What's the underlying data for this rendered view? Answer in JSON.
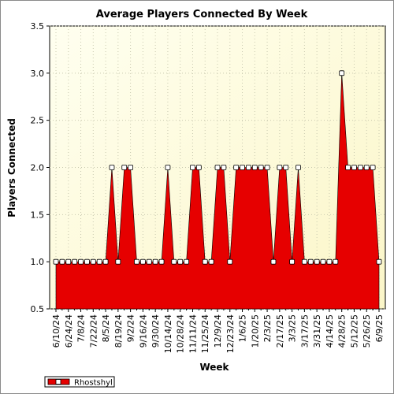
{
  "chart_data": {
    "type": "area",
    "title": "Average Players Connected By Week",
    "xlabel": "Week",
    "ylabel": "Players Connected",
    "ylim": [
      0.5,
      3.5
    ],
    "yticks": [
      "0.5",
      "1.0",
      "1.5",
      "2.0",
      "2.5",
      "3.0",
      "3.5"
    ],
    "grid": true,
    "legend_position": "bottom-left",
    "x_tick_labels": [
      "6/10/24",
      "6/24/24",
      "7/8/24",
      "7/22/24",
      "8/5/24",
      "8/19/24",
      "9/2/24",
      "9/16/24",
      "9/30/24",
      "10/14/24",
      "10/28/24",
      "11/11/24",
      "11/25/24",
      "12/9/24",
      "12/23/24",
      "1/6/25",
      "1/20/25",
      "2/3/25",
      "2/17/25",
      "3/3/25",
      "3/17/25",
      "3/31/25",
      "4/14/25",
      "4/28/25",
      "5/12/25",
      "5/26/25",
      "6/9/25"
    ],
    "x": [
      "6/10/24",
      "6/17/24",
      "6/24/24",
      "7/1/24",
      "7/8/24",
      "7/15/24",
      "7/22/24",
      "7/29/24",
      "8/5/24",
      "8/12/24",
      "8/19/24",
      "8/26/24",
      "9/2/24",
      "9/9/24",
      "9/16/24",
      "9/23/24",
      "9/30/24",
      "10/7/24",
      "10/14/24",
      "10/21/24",
      "10/28/24",
      "11/4/24",
      "11/11/24",
      "11/18/24",
      "11/25/24",
      "12/2/24",
      "12/9/24",
      "12/16/24",
      "12/23/24",
      "12/30/24",
      "1/6/25",
      "1/13/25",
      "1/20/25",
      "1/27/25",
      "2/3/25",
      "2/10/25",
      "2/17/25",
      "2/24/25",
      "3/3/25",
      "3/10/25",
      "3/17/25",
      "3/24/25",
      "3/31/25",
      "4/7/25",
      "4/14/25",
      "4/21/25",
      "4/28/25",
      "5/5/25",
      "5/12/25",
      "5/19/25",
      "5/26/25",
      "6/2/25",
      "6/9/25"
    ],
    "series": [
      {
        "name": "Rhostshyl",
        "color": "#e60000",
        "values": [
          1,
          1,
          1,
          1,
          1,
          1,
          1,
          1,
          1,
          2,
          1,
          2,
          2,
          1,
          1,
          1,
          1,
          1,
          2,
          1,
          1,
          1,
          2,
          2,
          1,
          1,
          2,
          2,
          1,
          2,
          2,
          2,
          2,
          2,
          2,
          1,
          2,
          2,
          1,
          2,
          1,
          1,
          1,
          1,
          1,
          1,
          3,
          2,
          2,
          2,
          2,
          2,
          1
        ]
      }
    ]
  }
}
